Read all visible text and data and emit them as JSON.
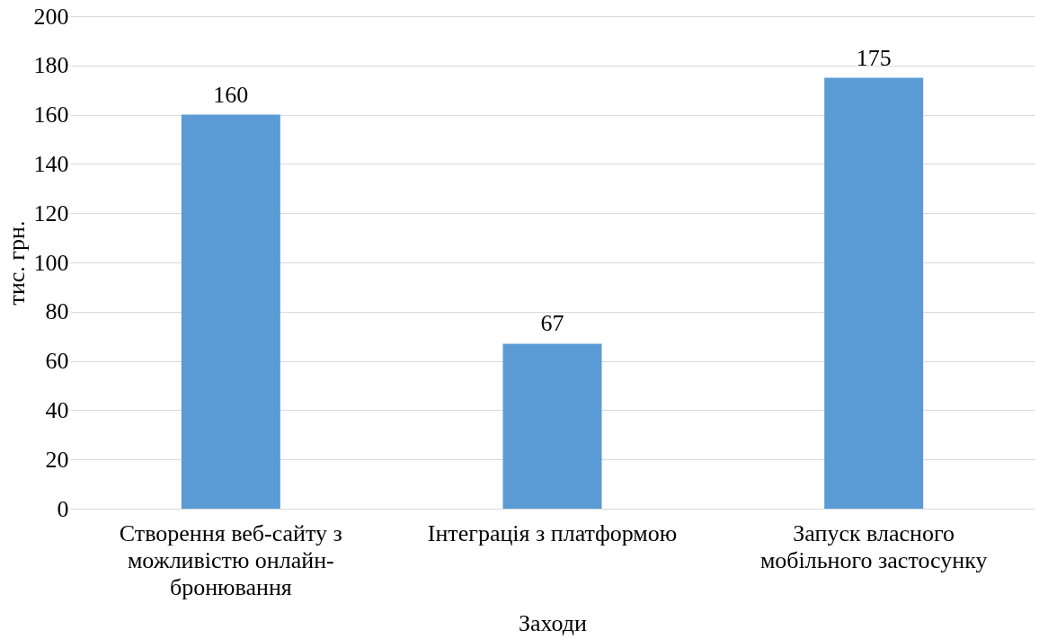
{
  "chart_data": {
    "type": "bar",
    "xlabel": "Заходи",
    "ylabel": "тис. грн.",
    "categories": [
      "Створення веб-сайту з можливістю онлайн-бронювання",
      "Інтеграція з платформою",
      "Запуск власного мобільного застосунку"
    ],
    "values": [
      160,
      67,
      175
    ],
    "color": "#5b9bd5",
    "ylim": [
      0,
      200
    ],
    "yticks": [
      0,
      20,
      40,
      60,
      80,
      100,
      120,
      140,
      160,
      180,
      200
    ],
    "grid": "y",
    "data_labels": true
  }
}
